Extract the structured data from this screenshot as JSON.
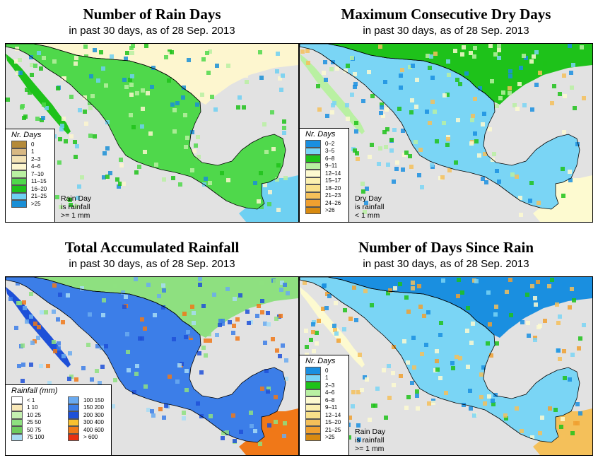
{
  "panels": [
    {
      "title": "Number of Rain Days",
      "subtitle": "in past 30 days, as of  28 Sep. 2013",
      "legend_title": "Nr. Days",
      "legend": [
        {
          "label": "0",
          "color": "#b48a3a"
        },
        {
          "label": "1",
          "color": "#d8b883"
        },
        {
          "label": "2–3",
          "color": "#f3e2b4"
        },
        {
          "label": "4–6",
          "color": "#fdf6cf"
        },
        {
          "label": "7–10",
          "color": "#b9f0a2"
        },
        {
          "label": "11–15",
          "color": "#4fd84b"
        },
        {
          "label": "16–20",
          "color": "#1ec21a"
        },
        {
          "label": "21–25",
          "color": "#6ed0f2"
        },
        {
          "label": ">25",
          "color": "#1a8fd6"
        }
      ],
      "note": [
        "Rain Day",
        "is rainfall",
        ">= 1 mm"
      ]
    },
    {
      "title": "Maximum Consecutive Dry Days",
      "subtitle": "in past 30 days, as of  28 Sep. 2013",
      "legend_title": "Nr. Days",
      "legend": [
        {
          "label": "0–2",
          "color": "#1a8fe0"
        },
        {
          "label": "3–5",
          "color": "#7ad5f5"
        },
        {
          "label": "6–8",
          "color": "#1ec21a"
        },
        {
          "label": "9–11",
          "color": "#b9f0a2"
        },
        {
          "label": "12–14",
          "color": "#fdfad0"
        },
        {
          "label": "15–17",
          "color": "#fbf0b0"
        },
        {
          "label": "18–20",
          "color": "#f8e08a"
        },
        {
          "label": "21–23",
          "color": "#f4c05a"
        },
        {
          "label": "24–26",
          "color": "#f0a030"
        },
        {
          "label": ">26",
          "color": "#d88a10"
        }
      ],
      "note": [
        "Dry Day",
        "is rainfall",
        "< 1 mm"
      ]
    },
    {
      "title": "Total Accumulated Rainfall",
      "subtitle": "in past 30 days, as of  28 Sep. 2013",
      "legend_title": "Rainfall (mm)",
      "legend_left": [
        {
          "label": "< 1",
          "color": "#ffffff"
        },
        {
          "label": "1   10",
          "color": "#f8e8b8"
        },
        {
          "label": "10   25",
          "color": "#c4f0b0"
        },
        {
          "label": "25   50",
          "color": "#8ee080"
        },
        {
          "label": "50   75",
          "color": "#6ecc5e"
        },
        {
          "label": "75   100",
          "color": "#a8dcf4"
        }
      ],
      "legend_right": [
        {
          "label": "100   150",
          "color": "#6aaaf0"
        },
        {
          "label": "150   200",
          "color": "#3c7ee8"
        },
        {
          "label": "200   300",
          "color": "#1e50d8"
        },
        {
          "label": "300   400",
          "color": "#f8c030"
        },
        {
          "label": "400   600",
          "color": "#f07818"
        },
        {
          "label": "> 600",
          "color": "#e83010"
        }
      ]
    },
    {
      "title": "Number of Days Since Rain",
      "subtitle": "in past 30 days, as of  28 Sep. 2013",
      "legend_title": "Nr. Days",
      "legend": [
        {
          "label": "0",
          "color": "#1a8fe0"
        },
        {
          "label": "1",
          "color": "#7ad5f5"
        },
        {
          "label": "2–3",
          "color": "#1ec21a"
        },
        {
          "label": "4–6",
          "color": "#b9f0a2"
        },
        {
          "label": "6–8",
          "color": "#fdfad0"
        },
        {
          "label": "9–11",
          "color": "#fbf0b0"
        },
        {
          "label": "12–14",
          "color": "#f8e08a"
        },
        {
          "label": "15–20",
          "color": "#f4c05a"
        },
        {
          "label": "21–25",
          "color": "#f0a030"
        },
        {
          "label": ">25",
          "color": "#d88a10"
        }
      ],
      "note": [
        "Rain Day",
        "is rainfall",
        ">= 1 mm"
      ]
    }
  ],
  "colors": {
    "ocean": "#e2e2e2",
    "border": "#000000"
  }
}
